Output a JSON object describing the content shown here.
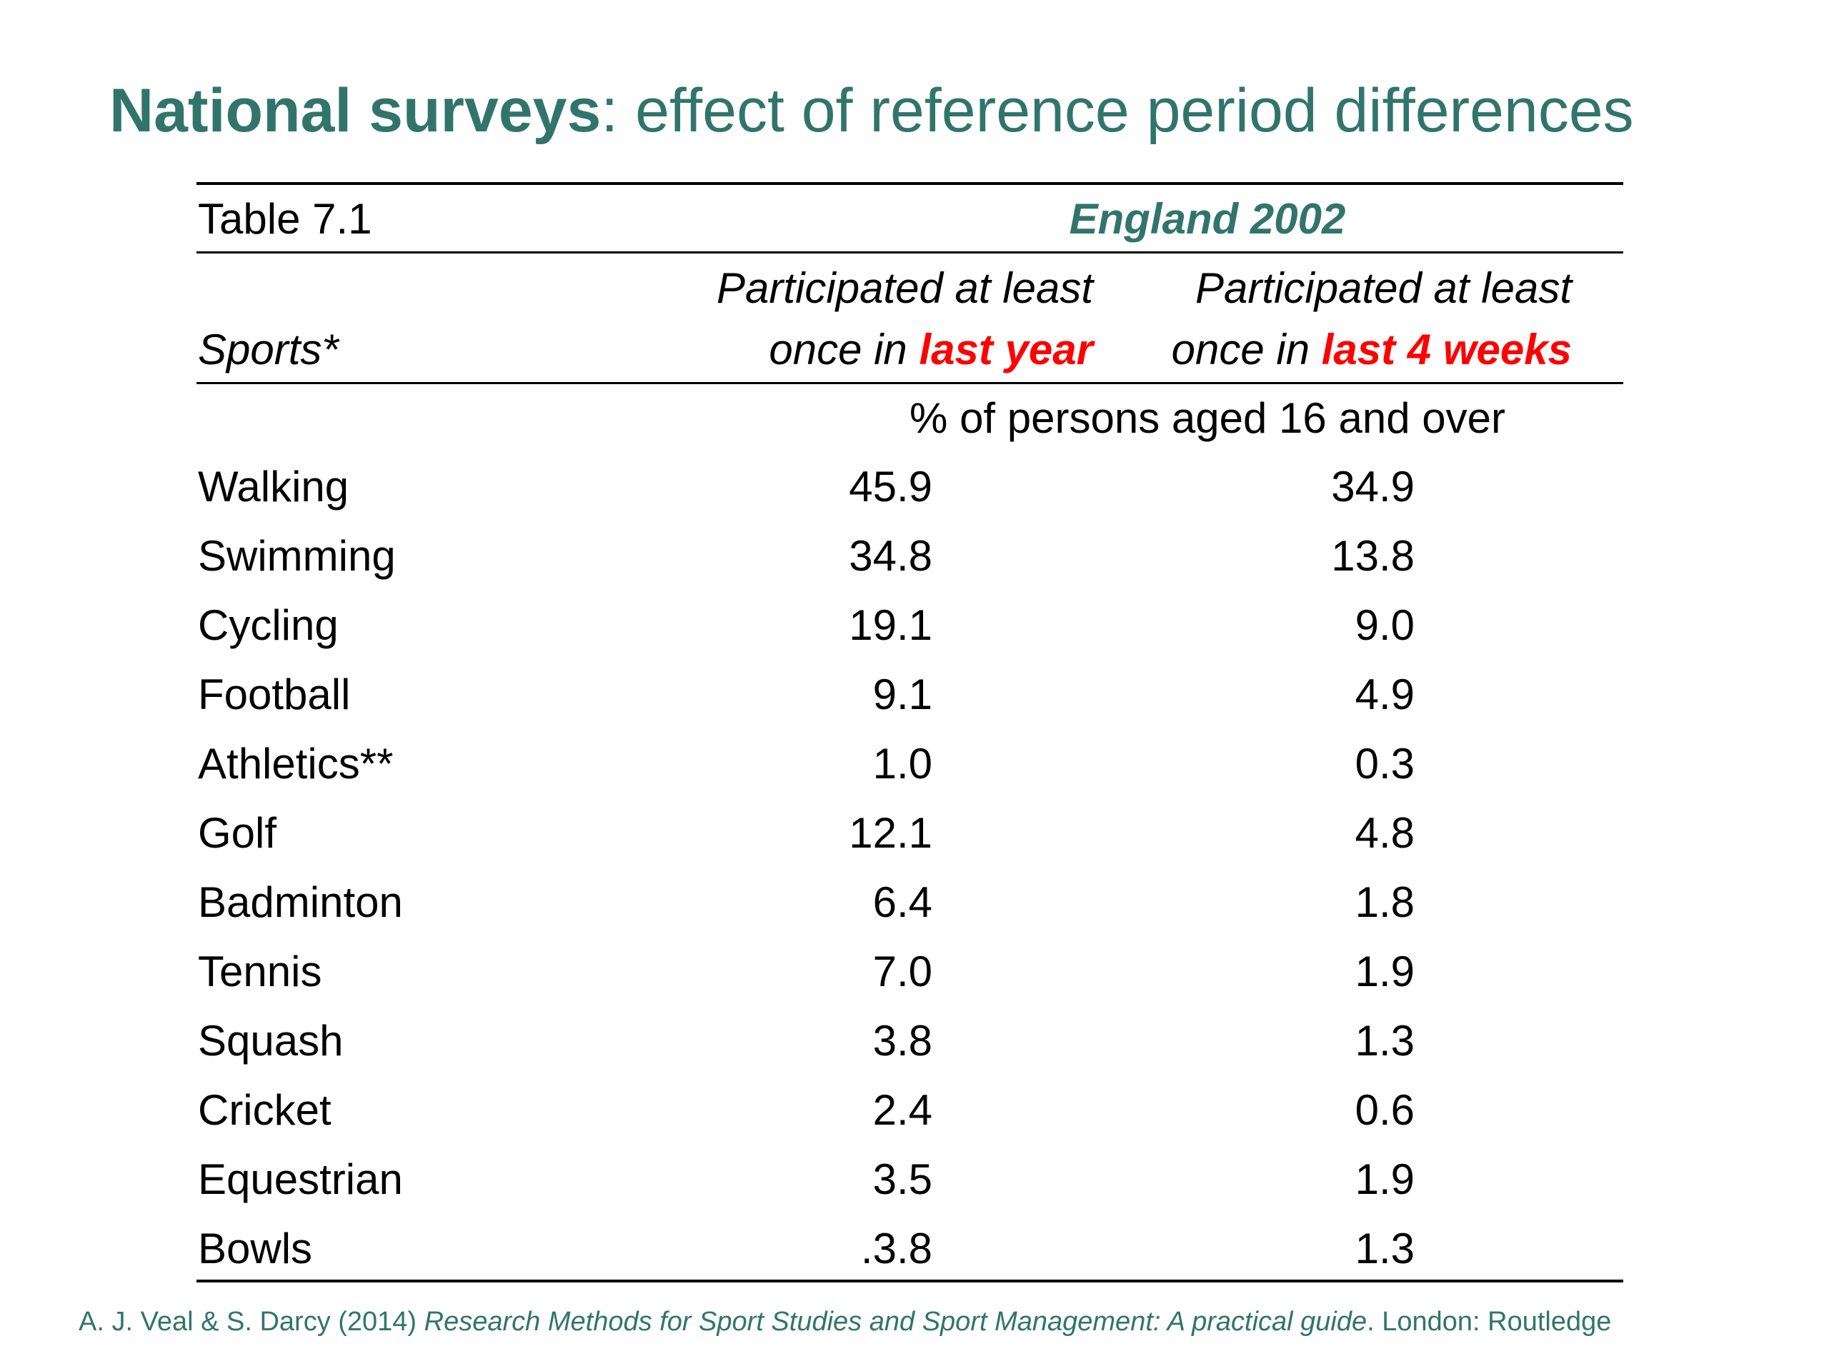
{
  "title": {
    "bold_part": "National surveys",
    "rest": ": effect of reference period differences"
  },
  "table": {
    "label": "Table 7.1",
    "country_year": "England 2002",
    "row_header": "Sports*",
    "columns": [
      {
        "line1": "Participated at least",
        "line2_prefix": "once in ",
        "line2_highlight": "last year"
      },
      {
        "line1": "Participated at least",
        "line2_prefix": "once in ",
        "line2_highlight": "last 4 weeks"
      }
    ],
    "unit_note": "% of persons aged 16 and over",
    "rows": [
      {
        "sport": "Walking",
        "last_year": "45.9",
        "last_4_weeks": "34.9"
      },
      {
        "sport": "Swimming",
        "last_year": "34.8",
        "last_4_weeks": "13.8"
      },
      {
        "sport": "Cycling",
        "last_year": "19.1",
        "last_4_weeks": "9.0"
      },
      {
        "sport": "Football",
        "last_year": "9.1",
        "last_4_weeks": "4.9"
      },
      {
        "sport": "Athletics**",
        "last_year": "1.0",
        "last_4_weeks": "0.3"
      },
      {
        "sport": "Golf",
        "last_year": "12.1",
        "last_4_weeks": "4.8"
      },
      {
        "sport": "Badminton",
        "last_year": "6.4",
        "last_4_weeks": "1.8"
      },
      {
        "sport": "Tennis",
        "last_year": "7.0",
        "last_4_weeks": "1.9"
      },
      {
        "sport": "Squash",
        "last_year": "3.8",
        "last_4_weeks": "1.3"
      },
      {
        "sport": "Cricket",
        "last_year": "2.4",
        "last_4_weeks": "0.6"
      },
      {
        "sport": "Equestrian",
        "last_year": "3.5",
        "last_4_weeks": "1.9"
      },
      {
        "sport": "Bowls",
        "last_year": ".3.8",
        "last_4_weeks": "1.3"
      }
    ]
  },
  "source": {
    "authors": "A. J. Veal & S. Darcy (2014) ",
    "book": "Research Methods for Sport Studies and Sport Management: A practical guide",
    "publisher": ". London: Routledge"
  },
  "colors": {
    "heading_teal": "#31756A",
    "highlight_red": "#FF0000",
    "text": "#000000",
    "background": "#FFFFFF"
  }
}
